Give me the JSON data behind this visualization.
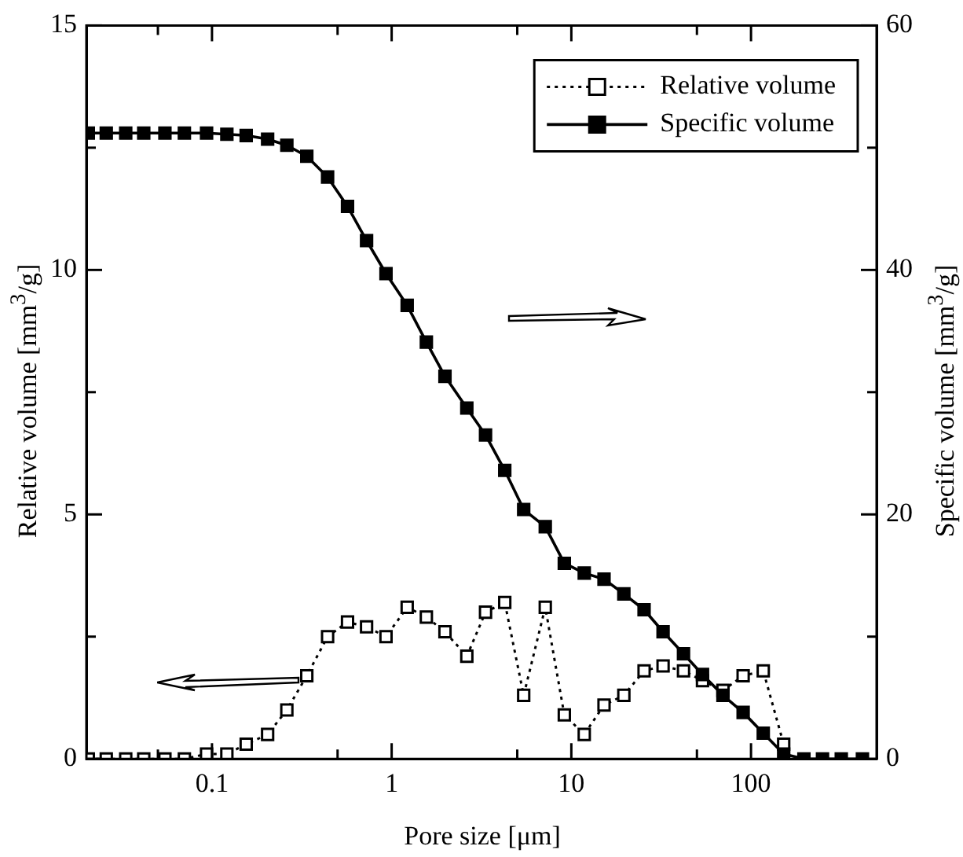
{
  "chart_data": {
    "type": "line",
    "xlabel": "Pore size [μm]",
    "ylabel": "Relative volume [mm$^{3}$/g]",
    "y2label": "Specific volume [mm$^{3}$/g]",
    "log": "x",
    "legend": "top right",
    "marker": "square",
    "xlim": [
      0.02,
      500
    ],
    "xticks": [
      {
        "value": 0.05,
        "label": null
      },
      0.1,
      {
        "value": 0.5,
        "label": null
      },
      1,
      {
        "value": 5,
        "label": null
      },
      10,
      {
        "value": 50,
        "label": null
      },
      100
    ],
    "ylim": [
      0,
      15
    ],
    "yticks": [
      0,
      {
        "value": 2.5,
        "label": null
      },
      5,
      {
        "value": 7.5,
        "label": null
      },
      10,
      {
        "value": 12.5,
        "label": null
      },
      15
    ],
    "y2lim": [
      0,
      60
    ],
    "y2ticks": [
      0,
      {
        "value": 10,
        "label": null
      },
      20,
      {
        "value": 30,
        "label": null
      },
      40,
      {
        "value": 50,
        "label": null
      },
      60
    ],
    "series": [
      {
        "name": "Relative volume",
        "color": "#000000",
        "axis": "y",
        "line_style": "dotted",
        "x": [
          0.0205,
          0.0258,
          0.0331,
          0.0417,
          0.0547,
          0.0702,
          0.0933,
          0.121,
          0.155,
          0.204,
          0.261,
          0.337,
          0.44,
          0.568,
          0.725,
          0.93,
          1.22,
          1.56,
          1.98,
          2.62,
          3.33,
          4.26,
          5.43,
          7.16,
          9.14,
          11.8,
          15.2,
          19.6,
          25.4,
          32.4,
          42.1,
          53.7,
          69.8,
          90.4,
          117,
          152
        ],
        "values": [
          0,
          0,
          0,
          0,
          0,
          0,
          0.1,
          0.1,
          0.3,
          0.5,
          1.0,
          1.7,
          2.5,
          2.8,
          2.7,
          2.5,
          3.1,
          2.9,
          2.6,
          2.1,
          3.0,
          3.2,
          1.3,
          3.1,
          0.9,
          0.5,
          1.1,
          1.3,
          1.8,
          1.9,
          1.8,
          1.6,
          1.4,
          1.7,
          1.8,
          0.3
        ]
      },
      {
        "name": "Specific volume",
        "color": "#000000",
        "axis": "y2",
        "line_style": "solid",
        "x": [
          0.0205,
          0.0258,
          0.0331,
          0.0417,
          0.0547,
          0.0702,
          0.0933,
          0.121,
          0.155,
          0.204,
          0.261,
          0.337,
          0.44,
          0.568,
          0.725,
          0.93,
          1.22,
          1.56,
          1.98,
          2.62,
          3.33,
          4.26,
          5.43,
          7.16,
          9.14,
          11.8,
          15.2,
          19.6,
          25.4,
          32.4,
          42.1,
          53.7,
          69.8,
          90.4,
          117,
          152,
          197,
          250,
          318,
          417
        ],
        "values": [
          51.2,
          51.2,
          51.2,
          51.2,
          51.2,
          51.2,
          51.2,
          51.1,
          51.0,
          50.7,
          50.2,
          49.3,
          47.6,
          45.2,
          42.4,
          39.7,
          37.1,
          34.1,
          31.3,
          28.7,
          26.5,
          23.6,
          20.4,
          19.0,
          16.0,
          15.2,
          14.7,
          13.5,
          12.2,
          10.4,
          8.6,
          6.9,
          5.2,
          3.8,
          2.1,
          0.4,
          0,
          0,
          0,
          0
        ]
      }
    ]
  }
}
